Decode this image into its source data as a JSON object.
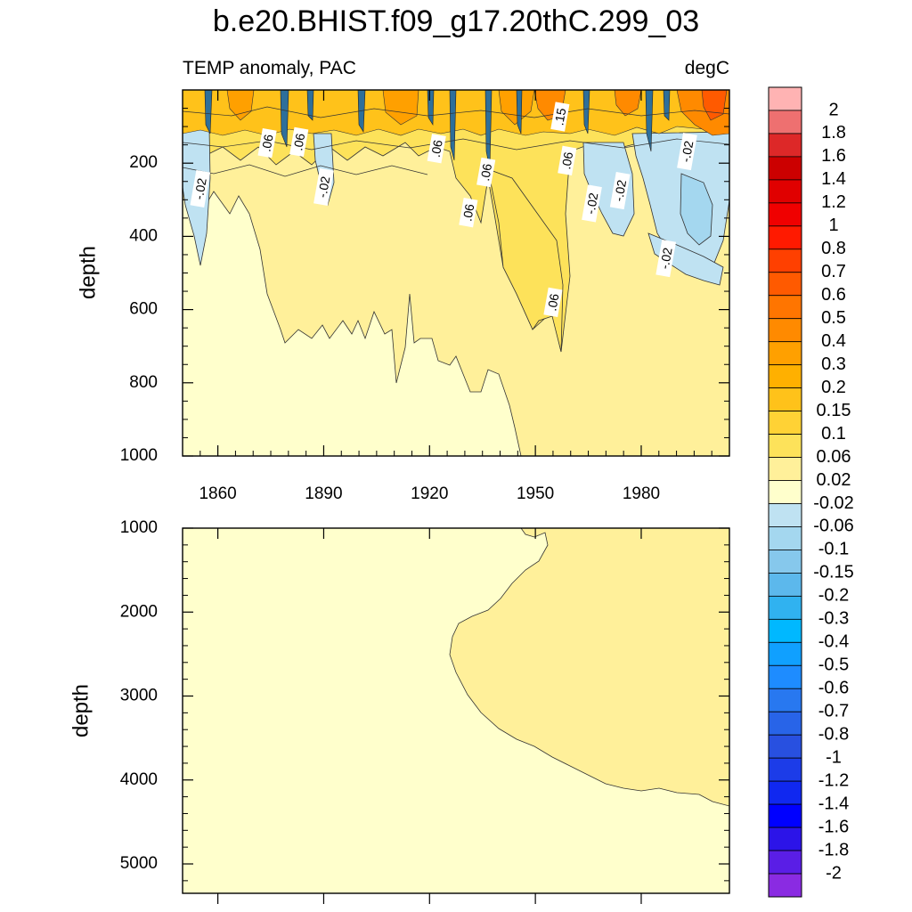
{
  "chart_data": {
    "type": "heatmap",
    "title": "b.e20.BHIST.f09_g17.20thC.299_03",
    "units": "degC",
    "panels": [
      {
        "name": "upper",
        "subtitle": "TEMP anomaly, PAC",
        "units_label": "degC",
        "ylabel": "depth",
        "xlim": [
          1850,
          2005
        ],
        "ylim": [
          0,
          1000
        ],
        "y_reversed": true,
        "x_ticks": [
          1860,
          1890,
          1920,
          1950,
          1980
        ],
        "x_tick_labels": [
          "1860",
          "1890",
          "1920",
          "1950",
          "1980"
        ],
        "y_ticks": [
          200,
          400,
          600,
          800,
          1000
        ],
        "y_tick_labels": [
          "200",
          "400",
          "600",
          "800",
          "1000"
        ],
        "contour_labels": [
          {
            "text": ".06",
            "x": 1874,
            "y": 145
          },
          {
            "text": ".06",
            "x": 1883,
            "y": 142
          },
          {
            "text": "-.02",
            "x": 1855,
            "y": 270
          },
          {
            "text": "-.02",
            "x": 1890,
            "y": 265
          },
          {
            "text": ".06",
            "x": 1922,
            "y": 160
          },
          {
            "text": ".06",
            "x": 1936,
            "y": 225
          },
          {
            "text": ".06",
            "x": 1931,
            "y": 335
          },
          {
            "text": ".15",
            "x": 1957,
            "y": 73
          },
          {
            "text": ".06",
            "x": 1959,
            "y": 193
          },
          {
            "text": "-.02",
            "x": 1966,
            "y": 310
          },
          {
            "text": "-.02",
            "x": 1974,
            "y": 275
          },
          {
            "text": "-.02",
            "x": 1993,
            "y": 168
          },
          {
            "text": "-.02",
            "x": 1987,
            "y": 460
          },
          {
            "text": ".06",
            "x": 1955,
            "y": 580
          }
        ]
      },
      {
        "name": "lower",
        "ylabel": "depth",
        "xlim": [
          1850,
          2005
        ],
        "ylim": [
          1000,
          5350
        ],
        "y_reversed": true,
        "y_ticks": [
          1000,
          2000,
          3000,
          4000,
          5000
        ],
        "y_tick_labels": [
          "1000",
          "2000",
          "3000",
          "4000",
          "5000"
        ]
      }
    ],
    "colorbar": {
      "levels": [
        "2",
        "1.8",
        "1.6",
        "1.4",
        "1.2",
        "1",
        "0.8",
        "0.7",
        "0.6",
        "0.5",
        "0.4",
        "0.3",
        "0.2",
        "0.15",
        "0.1",
        "0.06",
        "0.02",
        "-0.02",
        "-0.06",
        "-0.1",
        "-0.15",
        "-0.2",
        "-0.3",
        "-0.4",
        "-0.5",
        "-0.6",
        "-0.7",
        "-0.8",
        "-1",
        "-1.2",
        "-1.4",
        "-1.6",
        "-1.8",
        "-2"
      ],
      "colors": [
        "#ffb3b3",
        "#ee7070",
        "#dd2828",
        "#cc0000",
        "#e00000",
        "#f00000",
        "#ff1a00",
        "#ff4000",
        "#ff5a00",
        "#ff7500",
        "#ff8a00",
        "#ffa000",
        "#ffb000",
        "#ffc21a",
        "#ffd235",
        "#fde25a",
        "#fff09a",
        "#ffffcc",
        "#bfe2f2",
        "#a4d7ef",
        "#86c8ec",
        "#5cb8ec",
        "#30b2f0",
        "#00b8ff",
        "#10a0ff",
        "#1e8cff",
        "#2878f0",
        "#2864e8",
        "#2850e0",
        "#1c3ce8",
        "#1028f0",
        "#0000ff",
        "#2c14e8",
        "#5a1ee6",
        "#8a2be2"
      ]
    }
  }
}
